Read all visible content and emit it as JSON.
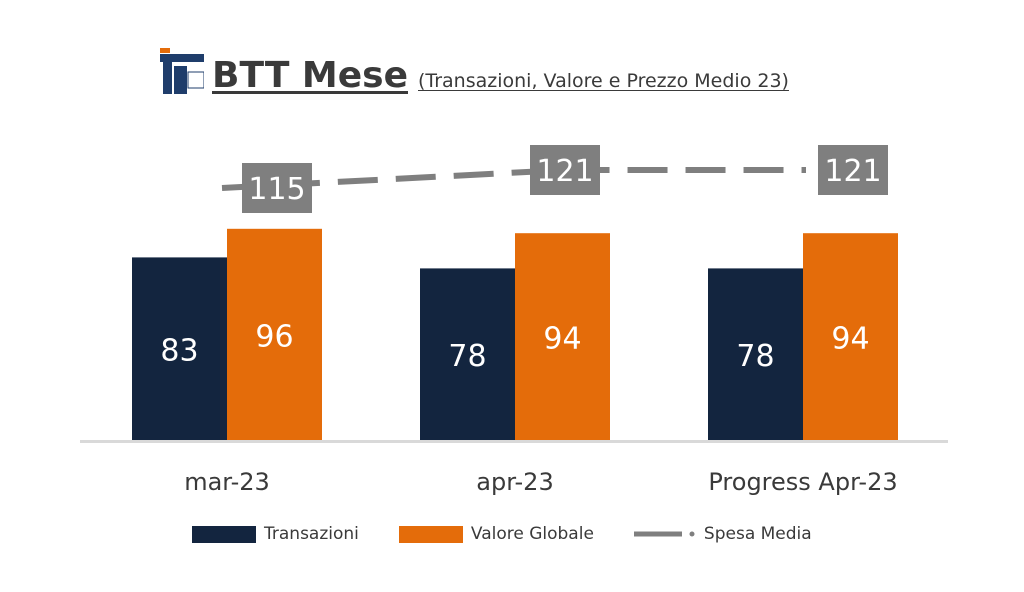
{
  "title": {
    "main": "BTT Mese",
    "subtitle": "(Transazioni, Valore e Prezzo Medio 23)"
  },
  "colors": {
    "transazioni": "#13253f",
    "valore": "#e46c0a",
    "spesa": "#7f7f7f",
    "axis": "#d9d9d9",
    "text": "#3a3a3a"
  },
  "chart_data": {
    "type": "bar",
    "categories": [
      "mar-23",
      "apr-23",
      "Progress Apr-23"
    ],
    "series": [
      {
        "name": "Transazioni",
        "type": "bar",
        "values": [
          83,
          78,
          78
        ]
      },
      {
        "name": "Valore Globale",
        "type": "bar",
        "values": [
          96,
          94,
          94
        ]
      },
      {
        "name": "Spesa Media",
        "type": "line",
        "style": "dashed",
        "values": [
          115,
          121,
          121
        ]
      }
    ],
    "legend_position": "bottom"
  },
  "legend": [
    {
      "label": "Transazioni",
      "kind": "bar",
      "color": "#13253f"
    },
    {
      "label": "Valore Globale",
      "kind": "bar",
      "color": "#e46c0a"
    },
    {
      "label": "Spesa Media",
      "kind": "line",
      "color": "#7f7f7f"
    }
  ]
}
